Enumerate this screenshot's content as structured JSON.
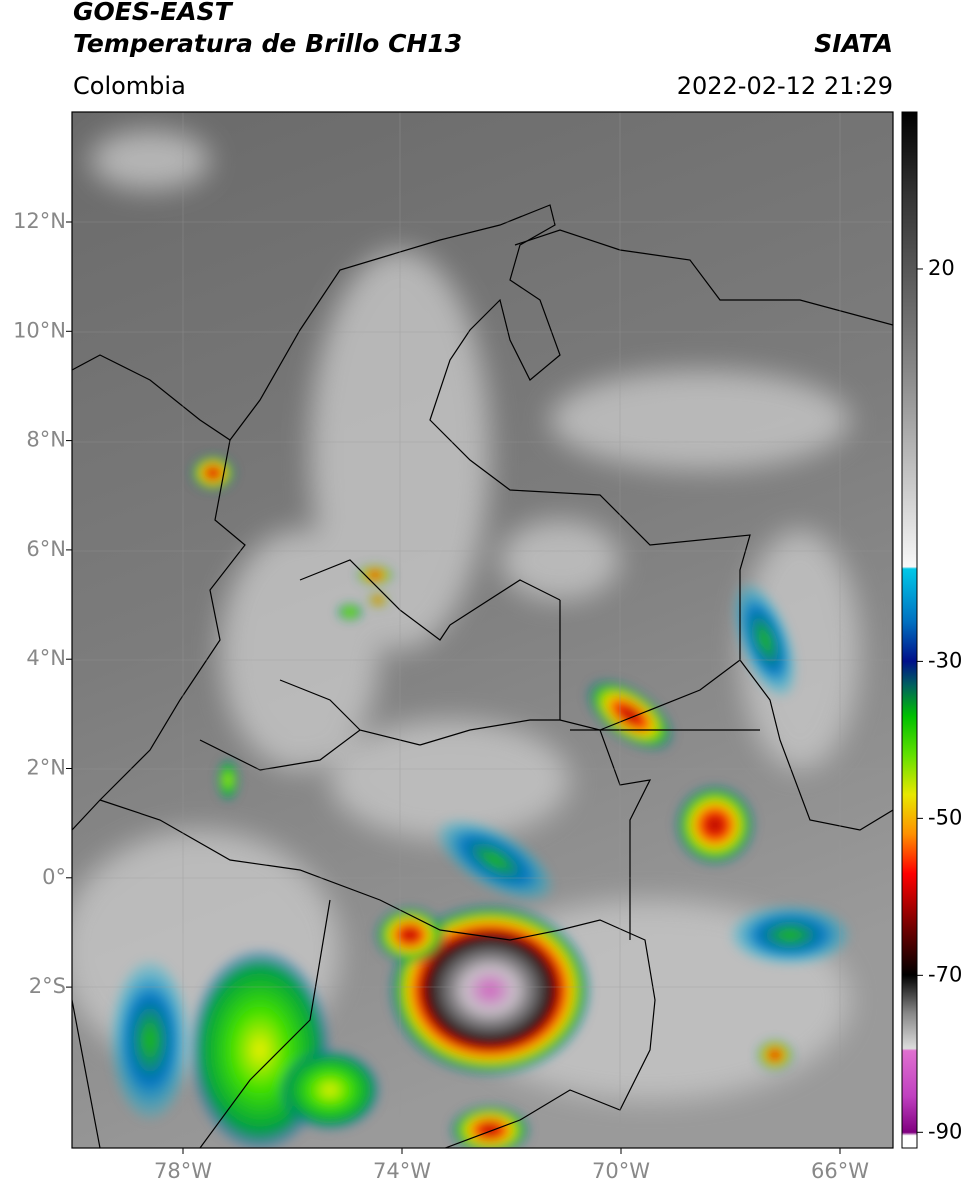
{
  "header": {
    "title": "GOES-EAST",
    "subtitle": "Temperatura de Brillo CH13",
    "source": "SIATA",
    "region": "Colombia",
    "timestamp": "2022-02-12 21:29"
  },
  "map": {
    "lat_labels": [
      "12°N",
      "10°N",
      "8°N",
      "6°N",
      "4°N",
      "2°N",
      "0°",
      "2°S"
    ],
    "lon_labels": [
      "78°W",
      "74°W",
      "70°W",
      "66°W"
    ]
  },
  "colorbar": {
    "lim": [
      -92,
      40
    ],
    "ticks": [
      20,
      -30,
      -50,
      -70,
      -90
    ]
  }
}
